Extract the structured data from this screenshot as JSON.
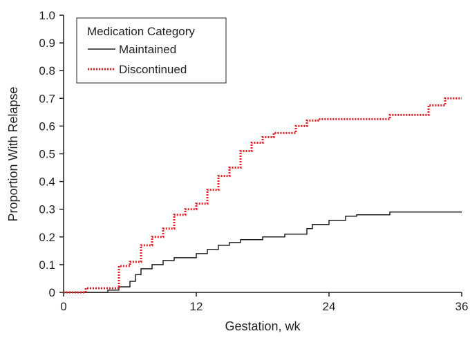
{
  "chart_data": {
    "type": "line",
    "xlabel": "Gestation, wk",
    "ylabel": "Proportion With Relapse",
    "xlim": [
      0,
      36
    ],
    "ylim": [
      0,
      1.0
    ],
    "x_ticks": [
      0,
      12,
      24,
      36
    ],
    "x_tick_labels": [
      "0",
      "12",
      "24",
      "36"
    ],
    "y_ticks": [
      0,
      0.1,
      0.2,
      0.3,
      0.4,
      0.5,
      0.6,
      0.7,
      0.8,
      0.9,
      1.0
    ],
    "y_tick_labels": [
      "0",
      "0.1",
      "0.2",
      "0.3",
      "0.4",
      "0.5",
      "0.6",
      "0.7",
      "0.8",
      "0.9",
      "1.0"
    ],
    "grid": false,
    "legend": {
      "title": "Medication Category",
      "position": "top-left"
    },
    "step": "post",
    "series": [
      {
        "name": "Maintained",
        "color": "#231f20",
        "style": "solid",
        "x": [
          0,
          4.0,
          5.0,
          6.0,
          6.5,
          7.0,
          8.0,
          9.0,
          10.0,
          12.0,
          13.0,
          14.0,
          15.0,
          16.0,
          18.0,
          20.0,
          22.0,
          22.5,
          24.0,
          25.5,
          26.5,
          29.5,
          36
        ],
        "y": [
          0,
          0.008,
          0.02,
          0.04,
          0.064,
          0.085,
          0.1,
          0.115,
          0.125,
          0.14,
          0.155,
          0.17,
          0.18,
          0.19,
          0.2,
          0.21,
          0.23,
          0.245,
          0.26,
          0.275,
          0.28,
          0.29,
          0.29
        ]
      },
      {
        "name": "Discontinued",
        "color": "#ed1c24",
        "style": "dotted",
        "x": [
          0,
          2.0,
          5.0,
          6.0,
          7.0,
          8.0,
          9.0,
          10.0,
          11.0,
          12.0,
          13.0,
          14.0,
          15.0,
          16.0,
          17.0,
          18.0,
          19.0,
          21.0,
          22.0,
          23.0,
          29.5,
          33.0,
          34.5,
          36
        ],
        "y": [
          0,
          0.015,
          0.095,
          0.11,
          0.17,
          0.2,
          0.23,
          0.28,
          0.3,
          0.32,
          0.37,
          0.42,
          0.45,
          0.51,
          0.54,
          0.56,
          0.575,
          0.6,
          0.62,
          0.625,
          0.64,
          0.675,
          0.7,
          0.7
        ]
      }
    ]
  }
}
